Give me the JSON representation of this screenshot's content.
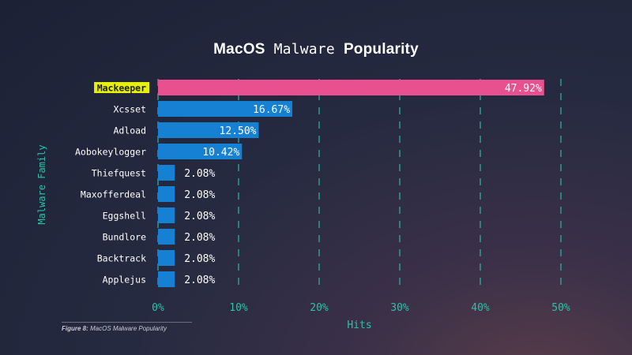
{
  "title": {
    "part1": "MacOS",
    "part2": "Malware",
    "part3": "Popularity"
  },
  "caption": {
    "fig_label": "Figure 8:",
    "text": "MacOS Malware Popularity"
  },
  "colors": {
    "highlight_bar": "#e8508f",
    "bar": "#1680d2",
    "grid": "#2fb7a4",
    "axis_text": "#2fc0a8",
    "label_text": "#ffffff",
    "highlight_label_bg": "#e6f000"
  },
  "chart_data": {
    "type": "bar",
    "orientation": "horizontal",
    "categories": [
      "Mackeeper",
      "Xcsset",
      "Adload",
      "Aobokeylogger",
      "Thiefquest",
      "Maxofferdeal",
      "Eggshell",
      "Bundlore",
      "Backtrack",
      "Applejus"
    ],
    "values": [
      47.92,
      16.67,
      12.5,
      10.42,
      2.08,
      2.08,
      2.08,
      2.08,
      2.08,
      2.08
    ],
    "value_labels": [
      "47.92%",
      "16.67%",
      "12.50%",
      "10.42%",
      "2.08%",
      "2.08%",
      "2.08%",
      "2.08%",
      "2.08%",
      "2.08%"
    ],
    "highlighted_category": "Mackeeper",
    "xlabel": "Hits",
    "ylabel": "Malware Family",
    "xlim": [
      0,
      50
    ],
    "xticks": [
      0,
      10,
      20,
      30,
      40,
      50
    ],
    "xtick_labels": [
      "0%",
      "10%",
      "20%",
      "30%",
      "40%",
      "50%"
    ],
    "grid": "vertical dashed",
    "legend": "none"
  }
}
